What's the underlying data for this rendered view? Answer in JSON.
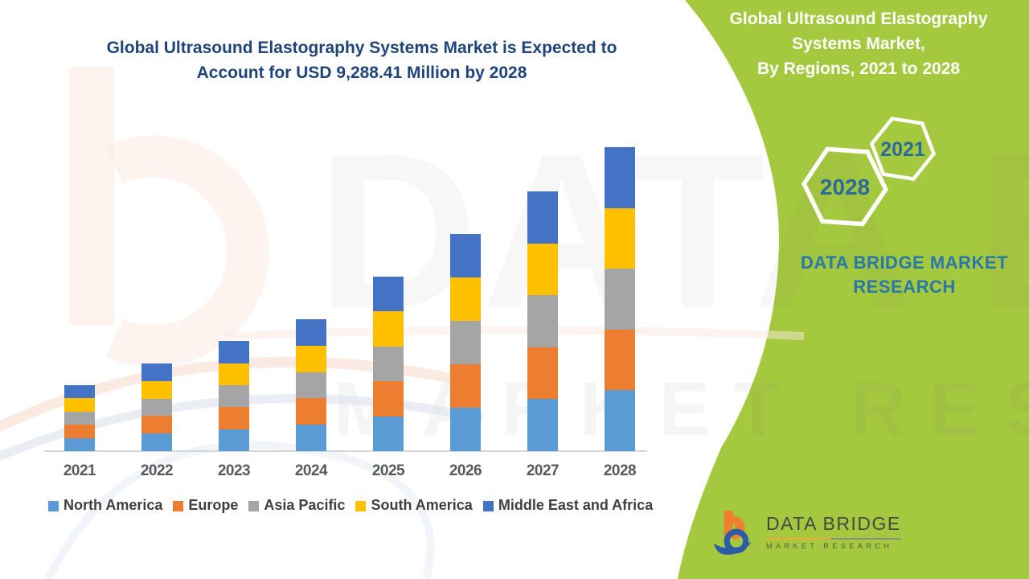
{
  "colors": {
    "green_bg": "#A4C83E",
    "title_blue": "#1F4478",
    "hex_text": "#2B6A99",
    "brand_blue": "#2878A8",
    "axis_line": "#D6D6D6",
    "year_label": "#595959",
    "legend_text": "#404040",
    "logo_orange": "#F0802D",
    "logo_blue": "#2B5CA8",
    "logo_text": "#474747"
  },
  "main_title": {
    "line1": "Global Ultrasound Elastography Systems Market is Expected to",
    "line2": "Account for USD 9,288.41 Million by 2028"
  },
  "side_panel": {
    "title_line1": "Global Ultrasound Elastography",
    "title_line2": "Systems Market,",
    "title_line3": "By Regions, 2021 to 2028",
    "hex_year_small": "2021",
    "hex_year_large": "2028",
    "brand_caption": "DATA BRIDGE MARKET RESEARCH"
  },
  "logo": {
    "name": "DATA BRIDGE",
    "subtitle": "MARKET RESEARCH"
  },
  "watermark": {
    "line1": "DATA BRIDGE",
    "line2": "MARKET RESEARCH"
  },
  "chart_data": {
    "type": "bar",
    "stacked": true,
    "title": "Global Ultrasound Elastography Systems Market is Expected to Account for USD 9,288.41 Million by 2028",
    "units": "USD Million",
    "values_estimated": true,
    "grid": false,
    "legend_position": "bottom",
    "ylim": [
      0,
      9300
    ],
    "categories": [
      "2021",
      "2022",
      "2023",
      "2024",
      "2025",
      "2026",
      "2027",
      "2028"
    ],
    "series": [
      {
        "name": "North America",
        "color": "#5B9BD5",
        "values": [
          403,
          536,
          673,
          806,
          1067,
          1327,
          1587,
          1857.68
        ]
      },
      {
        "name": "Europe",
        "color": "#ED7D31",
        "values": [
          403,
          536,
          673,
          806,
          1067,
          1327,
          1587,
          1857.68
        ]
      },
      {
        "name": "Asia Pacific",
        "color": "#A5A5A5",
        "values": [
          403,
          536,
          673,
          806,
          1067,
          1327,
          1587,
          1857.68
        ]
      },
      {
        "name": "South America",
        "color": "#FFC000",
        "values": [
          403,
          536,
          673,
          806,
          1067,
          1327,
          1587,
          1857.68
        ]
      },
      {
        "name": "Middle East and Africa",
        "color": "#4472C4",
        "values": [
          403,
          536,
          673,
          806,
          1067,
          1327,
          1587,
          1857.69
        ]
      }
    ],
    "totals": [
      2015,
      2680,
      3365,
      4030,
      5335,
      6635,
      7935,
      9288.41
    ]
  }
}
